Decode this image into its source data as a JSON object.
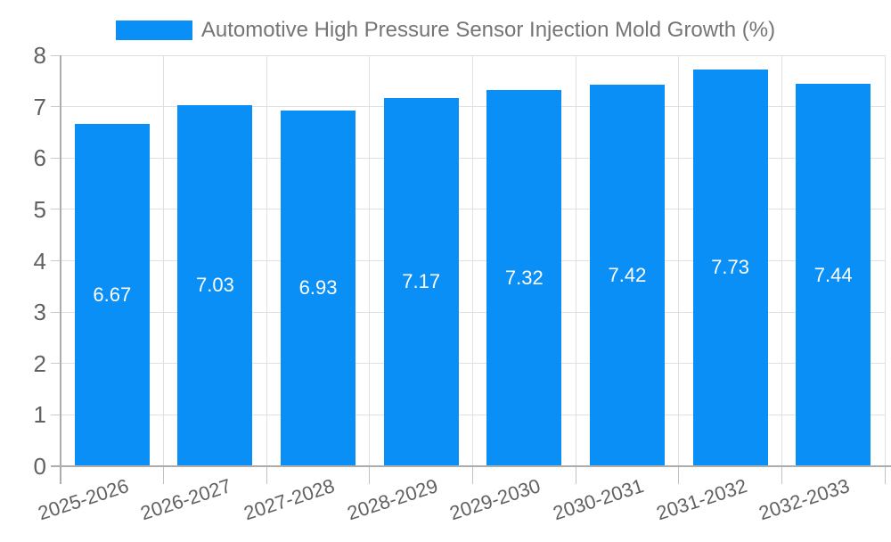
{
  "legend": {
    "label": "Automotive High Pressure Sensor Injection Mold Growth (%)",
    "swatch_color": "#0A8FF7"
  },
  "chart_data": {
    "type": "bar",
    "title": "Automotive High Pressure Sensor Injection Mold Growth (%)",
    "categories": [
      "2025-2026",
      "2026-2027",
      "2027-2028",
      "2028-2029",
      "2029-2030",
      "2030-2031",
      "2031-2032",
      "2032-2033"
    ],
    "values": [
      6.67,
      7.03,
      6.93,
      7.17,
      7.32,
      7.42,
      7.73,
      7.44
    ],
    "value_labels": [
      "6.67",
      "7.03",
      "6.93",
      "7.17",
      "7.32",
      "7.42",
      "7.73",
      "7.44"
    ],
    "xlabel": "",
    "ylabel": "",
    "ylim": [
      0,
      8
    ],
    "yticks": [
      0,
      1,
      2,
      3,
      4,
      5,
      6,
      7,
      8
    ],
    "grid": true,
    "legend_position": "top",
    "bar_color": "#0A8FF7",
    "value_label_color": "#FFFFFF",
    "axis_label_color": "#616161",
    "title_color": "#757575",
    "grid_color": "#E0E0E0",
    "axis_line_color": "#ADADAD"
  }
}
